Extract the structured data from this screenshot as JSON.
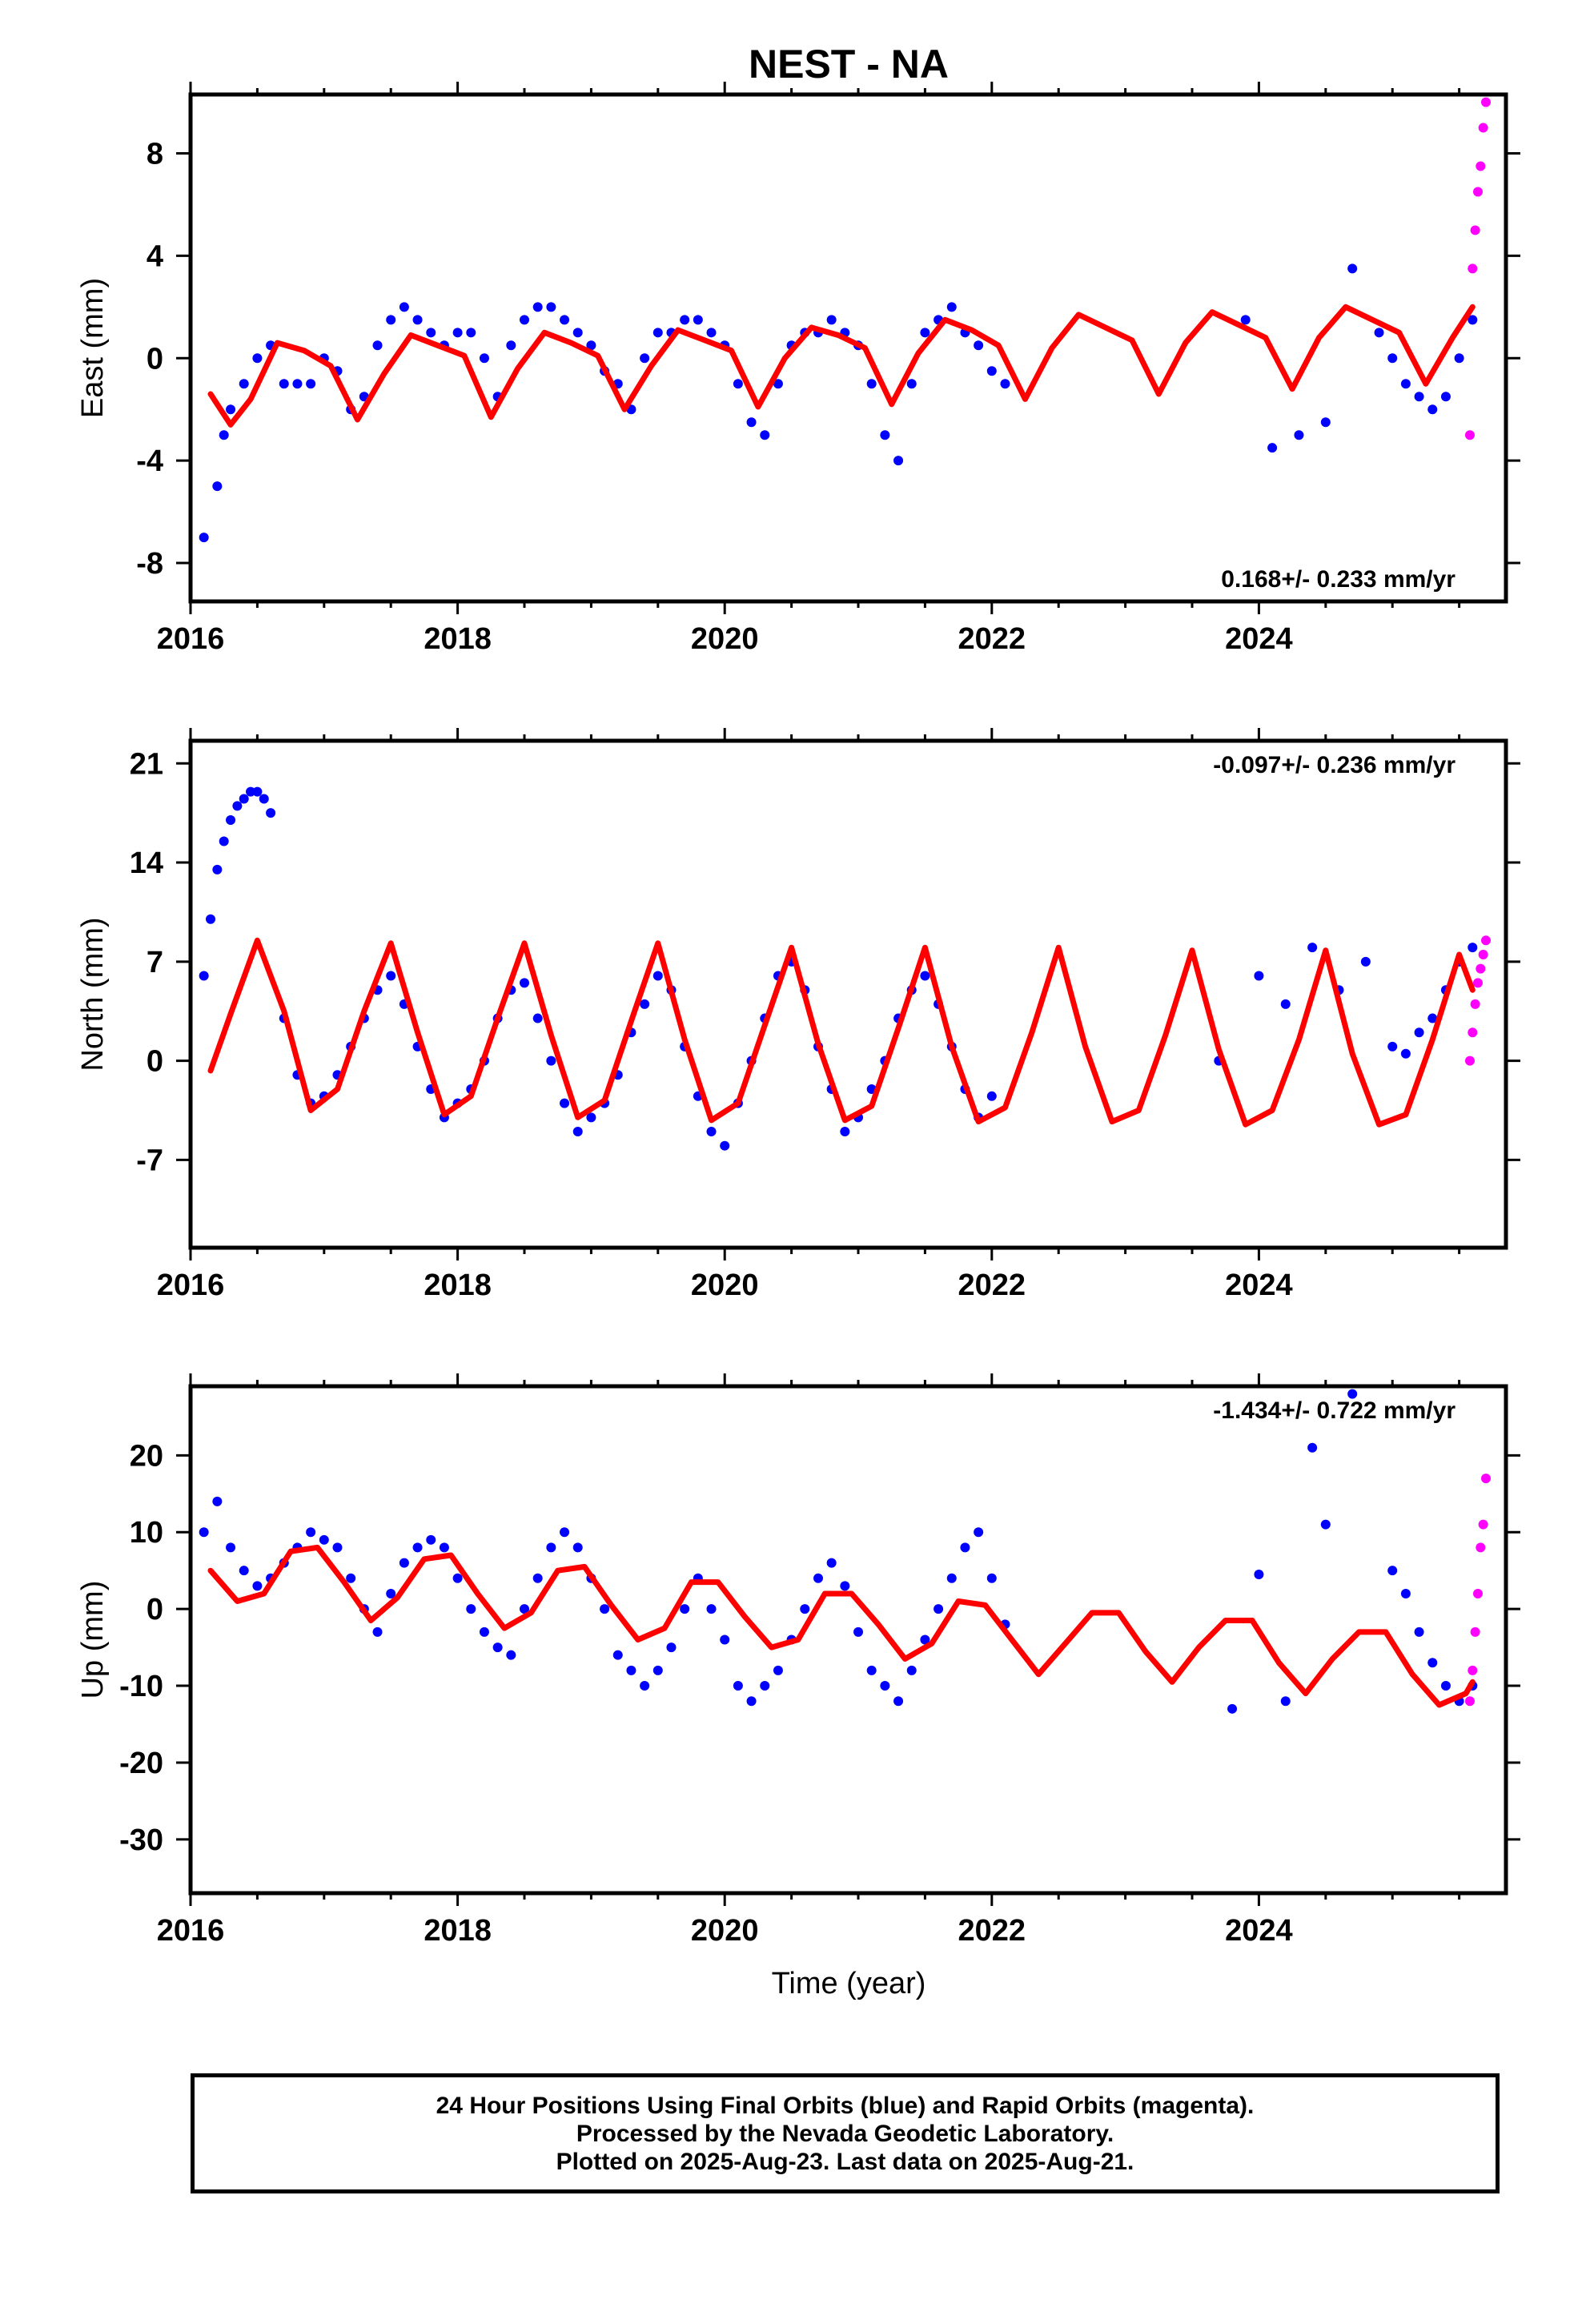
{
  "chart_data": {
    "title": "NEST - NA",
    "xlabel": "Time (year)",
    "xlim": [
      2016.0,
      2025.85
    ],
    "x_ticks": [
      "2016",
      "2018",
      "2020",
      "2022",
      "2024"
    ],
    "grid": false,
    "panels": [
      {
        "type": "scatter",
        "ylabel": "East (mm)",
        "ylim": [
          -9.5,
          10.3
        ],
        "y_ticks": [
          "-8",
          "-4",
          "0",
          "4",
          "8"
        ],
        "rate_label": "0.168+/- 0.233 mm/yr",
        "rate_label_position": "bottom-right",
        "series": [
          {
            "name": "Final Orbits",
            "color": "#0000ff",
            "x": [
              2016.1,
              2016.2,
              2016.25,
              2016.3,
              2016.4,
              2016.5,
              2016.6,
              2016.7,
              2016.8,
              2016.9,
              2017.0,
              2017.1,
              2017.2,
              2017.3,
              2017.4,
              2017.5,
              2017.6,
              2017.7,
              2017.8,
              2017.9,
              2018.0,
              2018.1,
              2018.2,
              2018.3,
              2018.4,
              2018.5,
              2018.6,
              2018.7,
              2018.8,
              2018.9,
              2019.0,
              2019.1,
              2019.2,
              2019.3,
              2019.4,
              2019.5,
              2019.6,
              2019.7,
              2019.8,
              2019.9,
              2020.0,
              2020.1,
              2020.2,
              2020.3,
              2020.4,
              2020.5,
              2020.6,
              2020.7,
              2020.8,
              2020.9,
              2021.0,
              2021.1,
              2021.2,
              2021.3,
              2021.4,
              2021.5,
              2021.6,
              2021.7,
              2021.8,
              2021.9,
              2022.0,
              2022.1,
              2023.9,
              2024.1,
              2024.3,
              2024.5,
              2024.7,
              2024.9,
              2025.0,
              2025.1,
              2025.2,
              2025.3,
              2025.4,
              2025.5,
              2025.6
            ],
            "y": [
              -7.0,
              -5.0,
              -3.0,
              -2.0,
              -1.0,
              0.0,
              0.5,
              -1.0,
              -1.0,
              -1.0,
              0.0,
              -0.5,
              -2.0,
              -1.5,
              0.5,
              1.5,
              2.0,
              1.5,
              1.0,
              0.5,
              1.0,
              1.0,
              0.0,
              -1.5,
              0.5,
              1.5,
              2.0,
              2.0,
              1.5,
              1.0,
              0.5,
              -0.5,
              -1.0,
              -2.0,
              0.0,
              1.0,
              1.0,
              1.5,
              1.5,
              1.0,
              0.5,
              -1.0,
              -2.5,
              -3.0,
              -1.0,
              0.5,
              1.0,
              1.0,
              1.5,
              1.0,
              0.5,
              -1.0,
              -3.0,
              -4.0,
              -1.0,
              1.0,
              1.5,
              2.0,
              1.0,
              0.5,
              -0.5,
              -1.0,
              1.5,
              -3.5,
              -3.0,
              -2.5,
              3.5,
              1.0,
              0.0,
              -1.0,
              -1.5,
              -2.0,
              -1.5,
              0.0,
              1.5
            ]
          },
          {
            "name": "Rapid Orbits",
            "color": "#ff00ff",
            "x": [
              2025.58,
              2025.6,
              2025.62,
              2025.64,
              2025.66,
              2025.68,
              2025.7
            ],
            "y": [
              -3.0,
              3.5,
              5.0,
              6.5,
              7.5,
              9.0,
              10.0
            ]
          },
          {
            "name": "Model fit",
            "color": "#ff0000",
            "x": [
              2016.15,
              2016.3,
              2016.45,
              2016.65,
              2016.85,
              2017.05,
              2017.25,
              2017.45,
              2017.65,
              2017.85,
              2018.05,
              2018.25,
              2018.45,
              2018.65,
              2018.85,
              2019.05,
              2019.25,
              2019.45,
              2019.65,
              2019.85,
              2020.05,
              2020.25,
              2020.45,
              2020.65,
              2020.85,
              2021.05,
              2021.25,
              2021.45,
              2021.65,
              2021.85,
              2022.05,
              2022.25,
              2022.45,
              2022.65,
              2022.85,
              2023.05,
              2023.25,
              2023.45,
              2023.65,
              2023.85,
              2024.05,
              2024.25,
              2024.45,
              2024.65,
              2024.85,
              2025.05,
              2025.25,
              2025.45,
              2025.6
            ],
            "y": [
              -1.4,
              -2.6,
              -1.6,
              0.6,
              0.3,
              -0.3,
              -2.4,
              -0.6,
              0.9,
              0.5,
              0.1,
              -2.3,
              -0.4,
              1.0,
              0.6,
              0.1,
              -2.0,
              -0.3,
              1.1,
              0.7,
              0.3,
              -1.9,
              0.0,
              1.2,
              0.9,
              0.4,
              -1.8,
              0.2,
              1.5,
              1.1,
              0.5,
              -1.6,
              0.4,
              1.7,
              1.2,
              0.7,
              -1.4,
              0.6,
              1.8,
              1.3,
              0.8,
              -1.2,
              0.8,
              2.0,
              1.5,
              1.0,
              -1.0,
              0.8,
              2.0
            ]
          }
        ]
      },
      {
        "type": "scatter",
        "ylabel": "North (mm)",
        "ylim": [
          -13.2,
          22.6
        ],
        "y_ticks": [
          "-7",
          "0",
          "7",
          "14",
          "21"
        ],
        "rate_label": "-0.097+/- 0.236 mm/yr",
        "rate_label_position": "top-right",
        "series": [
          {
            "name": "Final Orbits",
            "color": "#0000ff",
            "x": [
              2016.1,
              2016.15,
              2016.2,
              2016.25,
              2016.3,
              2016.35,
              2016.4,
              2016.45,
              2016.5,
              2016.55,
              2016.6,
              2016.7,
              2016.8,
              2016.9,
              2017.0,
              2017.1,
              2017.2,
              2017.3,
              2017.4,
              2017.5,
              2017.6,
              2017.7,
              2017.8,
              2017.9,
              2018.0,
              2018.1,
              2018.2,
              2018.3,
              2018.4,
              2018.5,
              2018.6,
              2018.7,
              2018.8,
              2018.9,
              2019.0,
              2019.1,
              2019.2,
              2019.3,
              2019.4,
              2019.5,
              2019.6,
              2019.7,
              2019.8,
              2019.9,
              2020.0,
              2020.1,
              2020.2,
              2020.3,
              2020.4,
              2020.5,
              2020.6,
              2020.7,
              2020.8,
              2020.9,
              2021.0,
              2021.1,
              2021.2,
              2021.3,
              2021.4,
              2021.5,
              2021.6,
              2021.7,
              2021.8,
              2021.9,
              2022.0,
              2023.7,
              2024.0,
              2024.2,
              2024.4,
              2024.6,
              2024.8,
              2025.0,
              2025.1,
              2025.2,
              2025.3,
              2025.4,
              2025.5,
              2025.6
            ],
            "y": [
              6.0,
              10.0,
              13.5,
              15.5,
              17.0,
              18.0,
              18.5,
              19.0,
              19.0,
              18.5,
              17.5,
              3.0,
              -1.0,
              -3.0,
              -2.5,
              -1.0,
              1.0,
              3.0,
              5.0,
              6.0,
              4.0,
              1.0,
              -2.0,
              -4.0,
              -3.0,
              -2.0,
              0.0,
              3.0,
              5.0,
              5.5,
              3.0,
              0.0,
              -3.0,
              -5.0,
              -4.0,
              -3.0,
              -1.0,
              2.0,
              4.0,
              6.0,
              5.0,
              1.0,
              -2.5,
              -5.0,
              -6.0,
              -3.0,
              0.0,
              3.0,
              6.0,
              7.0,
              5.0,
              1.0,
              -2.0,
              -5.0,
              -4.0,
              -2.0,
              0.0,
              3.0,
              5.0,
              6.0,
              4.0,
              1.0,
              -2.0,
              -4.0,
              -2.5,
              0.0,
              6.0,
              4.0,
              8.0,
              5.0,
              7.0,
              1.0,
              0.5,
              2.0,
              3.0,
              5.0,
              7.0,
              8.0
            ]
          },
          {
            "name": "Rapid Orbits",
            "color": "#ff00ff",
            "x": [
              2025.58,
              2025.6,
              2025.62,
              2025.64,
              2025.66,
              2025.68,
              2025.7
            ],
            "y": [
              0.0,
              2.0,
              4.0,
              5.5,
              6.5,
              7.5,
              8.5
            ]
          },
          {
            "name": "Model fit",
            "color": "#ff0000",
            "x": [
              2016.15,
              2016.3,
              2016.5,
              2016.7,
              2016.9,
              2017.1,
              2017.3,
              2017.5,
              2017.7,
              2017.9,
              2018.1,
              2018.3,
              2018.5,
              2018.7,
              2018.9,
              2019.1,
              2019.3,
              2019.5,
              2019.7,
              2019.9,
              2020.1,
              2020.3,
              2020.5,
              2020.7,
              2020.9,
              2021.1,
              2021.3,
              2021.5,
              2021.7,
              2021.9,
              2022.1,
              2022.3,
              2022.5,
              2022.7,
              2022.9,
              2023.1,
              2023.3,
              2023.5,
              2023.7,
              2023.9,
              2024.1,
              2024.3,
              2024.5,
              2024.7,
              2024.9,
              2025.1,
              2025.3,
              2025.5,
              2025.6
            ],
            "y": [
              -0.7,
              3.3,
              8.5,
              3.5,
              -3.5,
              -2.0,
              3.5,
              8.3,
              2.0,
              -3.8,
              -2.5,
              3.0,
              8.3,
              1.8,
              -4.0,
              -2.8,
              2.8,
              8.3,
              1.5,
              -4.2,
              -3.0,
              2.5,
              8.0,
              1.2,
              -4.2,
              -3.2,
              2.3,
              8.0,
              1.0,
              -4.3,
              -3.3,
              2.0,
              8.0,
              1.0,
              -4.3,
              -3.5,
              1.8,
              7.8,
              0.8,
              -4.5,
              -3.5,
              1.5,
              7.8,
              0.5,
              -4.5,
              -3.8,
              1.5,
              7.5,
              5.0
            ]
          }
        ]
      },
      {
        "type": "scatter",
        "ylabel": "Up (mm)",
        "ylim": [
          -37.0,
          29.0
        ],
        "y_ticks": [
          "-30",
          "-20",
          "-10",
          "0",
          "10",
          "20"
        ],
        "rate_label": "-1.434+/- 0.722 mm/yr",
        "rate_label_position": "top-right",
        "series": [
          {
            "name": "Final Orbits",
            "color": "#0000ff",
            "x": [
              2016.1,
              2016.2,
              2016.3,
              2016.4,
              2016.5,
              2016.6,
              2016.7,
              2016.8,
              2016.9,
              2017.0,
              2017.1,
              2017.2,
              2017.3,
              2017.4,
              2017.5,
              2017.6,
              2017.7,
              2017.8,
              2017.9,
              2018.0,
              2018.1,
              2018.2,
              2018.3,
              2018.4,
              2018.5,
              2018.6,
              2018.7,
              2018.8,
              2018.9,
              2019.0,
              2019.1,
              2019.2,
              2019.3,
              2019.4,
              2019.5,
              2019.6,
              2019.7,
              2019.8,
              2019.9,
              2020.0,
              2020.1,
              2020.2,
              2020.3,
              2020.4,
              2020.5,
              2020.6,
              2020.7,
              2020.8,
              2020.9,
              2021.0,
              2021.1,
              2021.2,
              2021.3,
              2021.4,
              2021.5,
              2021.6,
              2021.7,
              2021.8,
              2021.9,
              2022.0,
              2022.1,
              2023.8,
              2024.0,
              2024.2,
              2024.4,
              2024.5,
              2024.7,
              2025.0,
              2025.1,
              2025.2,
              2025.3,
              2025.4,
              2025.5,
              2025.6
            ],
            "y": [
              10.0,
              14.0,
              8.0,
              5.0,
              3.0,
              4.0,
              6.0,
              8.0,
              10.0,
              9.0,
              8.0,
              4.0,
              0.0,
              -3.0,
              2.0,
              6.0,
              8.0,
              9.0,
              8.0,
              4.0,
              0.0,
              -3.0,
              -5.0,
              -6.0,
              0.0,
              4.0,
              8.0,
              10.0,
              8.0,
              4.0,
              0.0,
              -6.0,
              -8.0,
              -10.0,
              -8.0,
              -5.0,
              0.0,
              4.0,
              0.0,
              -4.0,
              -10.0,
              -12.0,
              -10.0,
              -8.0,
              -4.0,
              0.0,
              4.0,
              6.0,
              3.0,
              -3.0,
              -8.0,
              -10.0,
              -12.0,
              -8.0,
              -4.0,
              0.0,
              4.0,
              8.0,
              10.0,
              4.0,
              -2.0,
              -13.0,
              4.5,
              -12.0,
              21.0,
              11.0,
              28.0,
              5.0,
              2.0,
              -3.0,
              -7.0,
              -10.0,
              -12.0,
              -10.0
            ]
          },
          {
            "name": "Rapid Orbits",
            "color": "#ff00ff",
            "x": [
              2025.58,
              2025.6,
              2025.62,
              2025.64,
              2025.66,
              2025.68,
              2025.7
            ],
            "y": [
              -12.0,
              -8.0,
              -3.0,
              2.0,
              8.0,
              11.0,
              17.0
            ]
          },
          {
            "name": "Model fit",
            "color": "#ff0000",
            "x": [
              2016.15,
              2016.35,
              2016.55,
              2016.75,
              2016.95,
              2017.15,
              2017.35,
              2017.55,
              2017.75,
              2017.95,
              2018.15,
              2018.35,
              2018.55,
              2018.75,
              2018.95,
              2019.15,
              2019.35,
              2019.55,
              2019.75,
              2019.95,
              2020.15,
              2020.35,
              2020.55,
              2020.75,
              2020.95,
              2021.15,
              2021.35,
              2021.55,
              2021.75,
              2021.95,
              2022.15,
              2022.35,
              2022.55,
              2022.75,
              2022.95,
              2023.15,
              2023.35,
              2023.55,
              2023.75,
              2023.95,
              2024.15,
              2024.35,
              2024.55,
              2024.75,
              2024.95,
              2025.15,
              2025.35,
              2025.55,
              2025.6
            ],
            "y": [
              5.0,
              1.0,
              2.0,
              7.5,
              8.0,
              3.5,
              -1.5,
              1.5,
              6.5,
              7.0,
              2.0,
              -2.5,
              -0.5,
              5.0,
              5.5,
              0.5,
              -4.0,
              -2.5,
              3.5,
              3.5,
              -1.0,
              -5.0,
              -4.0,
              2.0,
              2.0,
              -2.0,
              -6.5,
              -4.5,
              1.0,
              0.5,
              -4.0,
              -8.5,
              -4.5,
              -0.5,
              -0.5,
              -5.5,
              -9.5,
              -5.0,
              -1.5,
              -1.5,
              -7.0,
              -11.0,
              -6.5,
              -3.0,
              -3.0,
              -8.5,
              -12.5,
              -11.0,
              -9.5
            ]
          }
        ]
      }
    ]
  },
  "footer": {
    "line1": "24 Hour Positions Using Final Orbits (blue) and Rapid Orbits (magenta).",
    "line2": "Processed by the Nevada Geodetic Laboratory.",
    "line3": "Plotted on 2025-Aug-23. Last data on 2025-Aug-21."
  }
}
